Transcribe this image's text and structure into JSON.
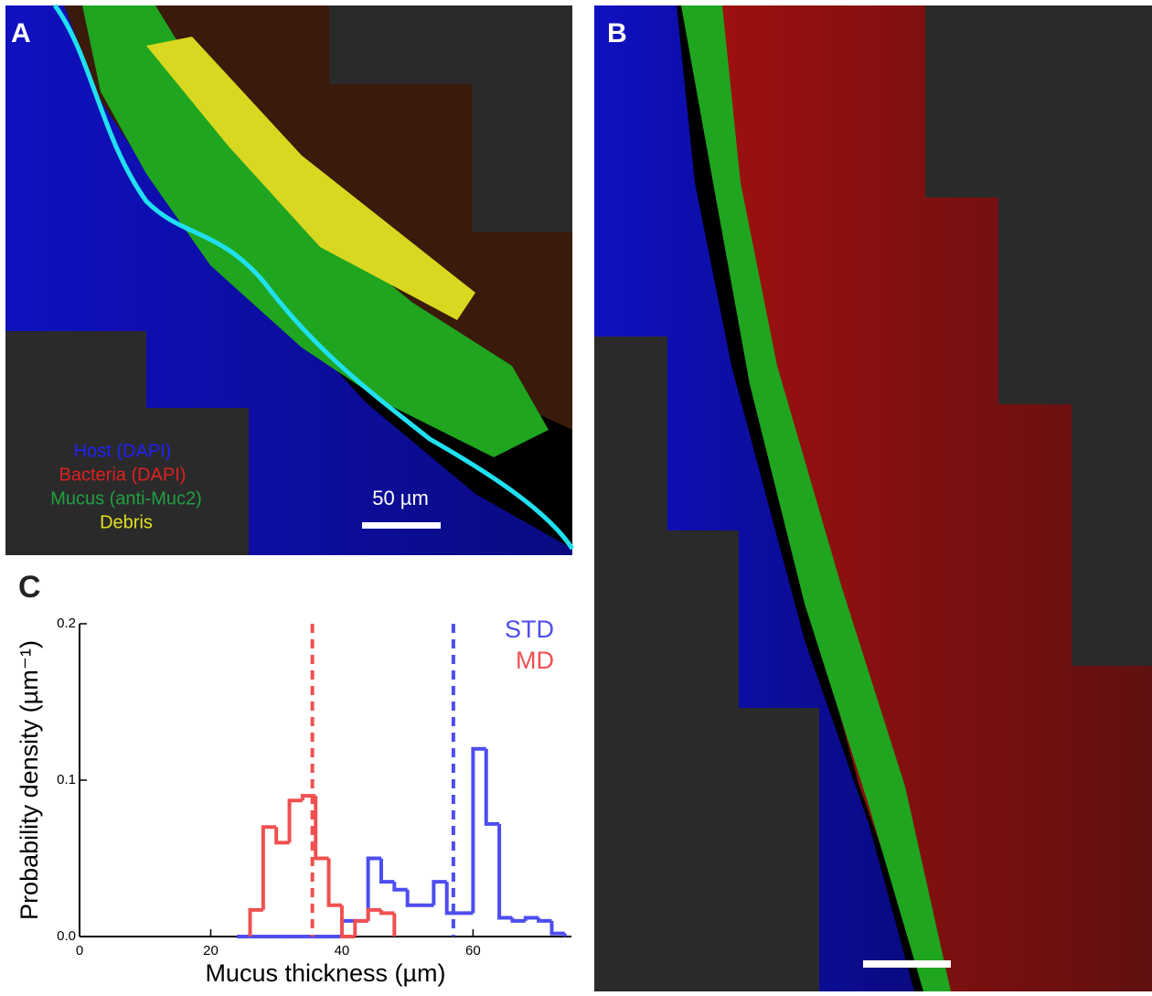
{
  "panels": {
    "a": {
      "label": "A",
      "legend": [
        "Host (DAPI)",
        "Bacteria (DAPI)",
        "Mucus (anti-Muc2)",
        "Debris"
      ],
      "scale_bar": "50 µm"
    },
    "b": {
      "label": "B"
    },
    "c": {
      "label": "C"
    }
  },
  "chart_data": {
    "type": "histogram",
    "xlabel": "Mucus thickness (µm)",
    "ylabel": "Probability density (µm⁻¹)",
    "xlim": [
      0,
      75
    ],
    "ylim": [
      0,
      0.2
    ],
    "xticks": [
      0,
      20,
      40,
      60
    ],
    "yticks": [
      {
        "value": 0,
        "label": "0.0"
      },
      0.1,
      0.2
    ],
    "series": [
      {
        "name": "STD",
        "color": "#4d4df0",
        "bins": [
          24,
          26,
          28,
          30,
          32,
          34,
          36,
          38,
          40,
          42,
          44,
          46,
          48,
          50,
          52,
          54,
          56,
          58,
          60,
          62,
          64,
          66,
          68,
          70,
          72,
          74
        ],
        "values": [
          0,
          0,
          0,
          0,
          0,
          0,
          0,
          0,
          0.01,
          0.01,
          0.05,
          0.035,
          0.03,
          0.02,
          0.02,
          0.035,
          0.015,
          0.015,
          0.12,
          0.072,
          0.012,
          0.01,
          0.012,
          0.01,
          0.002
        ],
        "mean": 57
      },
      {
        "name": "MD",
        "color": "#f05050",
        "bins": [
          26,
          28,
          30,
          32,
          34,
          36,
          38,
          40,
          42,
          44,
          46,
          48
        ],
        "values": [
          0.017,
          0.07,
          0.06,
          0.087,
          0.09,
          0.05,
          0.02,
          0,
          0.01,
          0.017,
          0.015
        ],
        "mean": 35.5
      }
    ]
  }
}
